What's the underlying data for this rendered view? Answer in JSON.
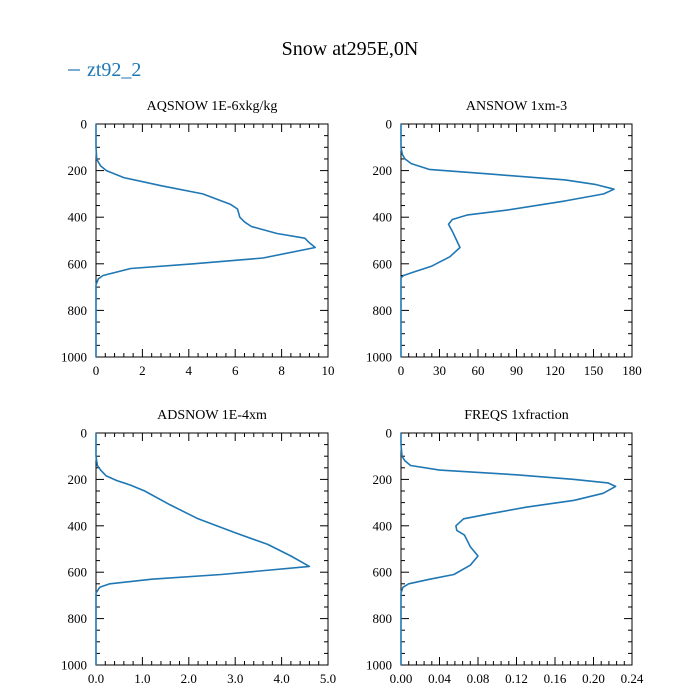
{
  "title": "Snow at295E,0N",
  "legend": {
    "label": "zt92_2",
    "color": "#1f77b4"
  },
  "chart_data": [
    {
      "type": "line",
      "title": "AQSNOW  1E-6xkg/kg",
      "xlim": [
        0,
        10
      ],
      "ylim": [
        1000,
        0
      ],
      "xticks": [
        "0",
        "2",
        "4",
        "6",
        "8",
        "10"
      ],
      "yticks": [
        "0",
        "200",
        "400",
        "600",
        "800",
        "1000"
      ],
      "series": [
        {
          "name": "zt92_2",
          "x": [
            0,
            0,
            0,
            0.03,
            0.08,
            0.2,
            0.45,
            1.2,
            2.8,
            4.6,
            5.8,
            6.1,
            6.2,
            6.4,
            6.7,
            7.8,
            9.0,
            9.2,
            9.45,
            7.2,
            4.2,
            1.5,
            0.3,
            0.1,
            0,
            0,
            0
          ],
          "y": [
            0,
            50,
            100,
            150,
            160,
            180,
            200,
            230,
            265,
            300,
            345,
            365,
            400,
            420,
            440,
            470,
            490,
            510,
            530,
            575,
            600,
            620,
            650,
            665,
            690,
            800,
            1000
          ]
        }
      ]
    },
    {
      "type": "line",
      "title": "ANSNOW  1xm-3",
      "xlim": [
        0,
        180
      ],
      "ylim": [
        1000,
        0
      ],
      "xticks": [
        "0",
        "30",
        "60",
        "90",
        "120",
        "150",
        "180"
      ],
      "yticks": [
        "0",
        "200",
        "400",
        "600",
        "800",
        "1000"
      ],
      "series": [
        {
          "name": "zt92_2",
          "x": [
            0,
            0,
            0,
            1,
            3,
            8,
            22,
            70,
            128,
            152,
            166,
            158,
            128,
            82,
            52,
            40,
            37,
            40,
            46,
            38,
            24,
            10,
            2,
            0,
            0,
            0
          ],
          "y": [
            0,
            50,
            100,
            130,
            150,
            170,
            195,
            215,
            240,
            260,
            280,
            300,
            330,
            370,
            390,
            410,
            430,
            460,
            530,
            570,
            610,
            635,
            650,
            660,
            800,
            1000
          ]
        }
      ]
    },
    {
      "type": "line",
      "title": "ADSNOW  1E-4xm",
      "xlim": [
        0,
        5
      ],
      "ylim": [
        1000,
        0
      ],
      "xticks": [
        "0.0",
        "1.0",
        "2.0",
        "3.0",
        "4.0",
        "5.0"
      ],
      "yticks": [
        "0",
        "200",
        "400",
        "600",
        "800",
        "1000"
      ],
      "series": [
        {
          "name": "zt92_2",
          "x": [
            0,
            0,
            0,
            0.03,
            0.1,
            0.22,
            0.45,
            0.75,
            1.05,
            1.6,
            2.2,
            3.0,
            3.7,
            4.2,
            4.6,
            2.7,
            1.2,
            0.3,
            0.08,
            0,
            0,
            0
          ],
          "y": [
            0,
            50,
            100,
            140,
            160,
            185,
            205,
            225,
            250,
            310,
            370,
            430,
            480,
            530,
            575,
            610,
            630,
            650,
            665,
            690,
            800,
            1000
          ]
        }
      ]
    },
    {
      "type": "line",
      "title": "FREQS  1xfraction",
      "xlim": [
        0,
        0.24
      ],
      "ylim": [
        1000,
        0
      ],
      "xticks": [
        "0.00",
        "0.04",
        "0.08",
        "0.12",
        "0.16",
        "0.20",
        "0.24"
      ],
      "yticks": [
        "0",
        "200",
        "400",
        "600",
        "800",
        "1000"
      ],
      "series": [
        {
          "name": "zt92_2",
          "x": [
            0,
            0,
            0.001,
            0.004,
            0.01,
            0.04,
            0.12,
            0.18,
            0.215,
            0.223,
            0.21,
            0.18,
            0.13,
            0.09,
            0.065,
            0.057,
            0.058,
            0.066,
            0.072,
            0.08,
            0.072,
            0.055,
            0.03,
            0.008,
            0.002,
            0,
            0,
            0
          ],
          "y": [
            0,
            50,
            100,
            120,
            140,
            160,
            180,
            200,
            215,
            230,
            260,
            290,
            320,
            350,
            370,
            400,
            420,
            440,
            490,
            530,
            570,
            610,
            630,
            650,
            665,
            690,
            800,
            1000
          ]
        }
      ]
    }
  ]
}
